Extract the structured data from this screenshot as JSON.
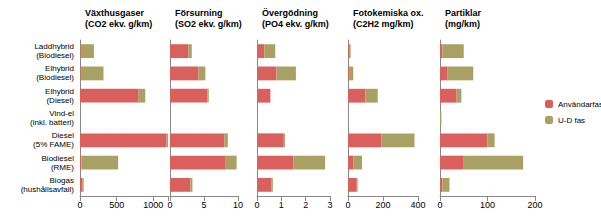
{
  "chart_data": [
    {
      "type": "bar",
      "orientation": "horizontal",
      "stacked": true,
      "title": "Växthusgaser (CO2 ekv. g/km)",
      "categories": [
        "Laddhybrid (Biodiesel)",
        "Elhybrid (Biodiesel)",
        "Elhybrid (Diesel)",
        "Vind-el (inkl. batteri)",
        "Diesel (5% FAME)",
        "Biodiesel (RME)",
        "Biogas (hushållsavfall)"
      ],
      "series": [
        {
          "name": "Användarfas",
          "color": "#d9605c",
          "values": [
            10,
            10,
            800,
            0,
            1180,
            20,
            30
          ]
        },
        {
          "name": "U-D fas",
          "color": "#a9a164",
          "values": [
            180,
            310,
            90,
            0,
            20,
            500,
            20
          ]
        }
      ],
      "xlim": [
        0,
        1200
      ],
      "xticks": [
        0,
        500,
        1000
      ]
    },
    {
      "type": "bar",
      "orientation": "horizontal",
      "stacked": true,
      "title": "Försurning (SO2 ekv. g/km)",
      "categories": [
        "Laddhybrid (Biodiesel)",
        "Elhybrid (Biodiesel)",
        "Elhybrid (Diesel)",
        "Vind-el (inkl. batteri)",
        "Diesel (5% FAME)",
        "Biodiesel (RME)",
        "Biogas (hushållsavfall)"
      ],
      "series": [
        {
          "name": "Användarfas",
          "color": "#d9605c",
          "values": [
            2.7,
            4.2,
            5.5,
            0,
            8,
            8.2,
            3
          ]
        },
        {
          "name": "U-D fas",
          "color": "#a9a164",
          "values": [
            0.5,
            1.0,
            0.2,
            0,
            0.5,
            1.6,
            0.3
          ]
        }
      ],
      "xlim": [
        0,
        10
      ],
      "xticks": [
        0,
        5,
        10
      ]
    },
    {
      "type": "bar",
      "orientation": "horizontal",
      "stacked": true,
      "title": "Övergödning (PO4 ekv. g/km)",
      "categories": [
        "Laddhybrid (Biodiesel)",
        "Elhybrid (Biodiesel)",
        "Elhybrid (Diesel)",
        "Vind-el (inkl. batteri)",
        "Diesel (5% FAME)",
        "Biodiesel (RME)",
        "Biogas (hushållsavfall)"
      ],
      "series": [
        {
          "name": "Användarfas",
          "color": "#d9605c",
          "values": [
            0.3,
            0.8,
            0.55,
            0,
            1.1,
            1.5,
            0.6
          ]
        },
        {
          "name": "U-D fas",
          "color": "#a9a164",
          "values": [
            0.45,
            0.8,
            0,
            0,
            0.05,
            1.3,
            0.05
          ]
        }
      ],
      "xlim": [
        0,
        3
      ],
      "xticks": [
        0,
        1,
        2,
        3
      ]
    },
    {
      "type": "bar",
      "orientation": "horizontal",
      "stacked": true,
      "title": "Fotokemiska ox. (C2H2 mg/km)",
      "categories": [
        "Laddhybrid (Biodiesel)",
        "Elhybrid (Biodiesel)",
        "Elhybrid (Diesel)",
        "Vind-el (inkl. batteri)",
        "Diesel (5% FAME)",
        "Biodiesel (RME)",
        "Biogas (hushållsavfall)"
      ],
      "series": [
        {
          "name": "Användarfas",
          "color": "#d9605c",
          "values": [
            5,
            10,
            100,
            0,
            190,
            30,
            50
          ]
        },
        {
          "name": "U-D fas",
          "color": "#a9a164",
          "values": [
            10,
            20,
            70,
            0,
            190,
            50,
            5
          ]
        }
      ],
      "xlim": [
        0,
        400
      ],
      "xticks": [
        0,
        200,
        400
      ]
    },
    {
      "type": "bar",
      "orientation": "horizontal",
      "stacked": true,
      "title": "Partiklar (mg/km)",
      "categories": [
        "Laddhybrid (Biodiesel)",
        "Elhybrid (Biodiesel)",
        "Elhybrid (Diesel)",
        "Vind-el (inkl. batteri)",
        "Diesel (5% FAME)",
        "Biodiesel (RME)",
        "Biogas (hushållsavfall)"
      ],
      "series": [
        {
          "name": "Användarfas",
          "color": "#d9605c",
          "values": [
            5,
            15,
            35,
            0,
            100,
            50,
            5
          ]
        },
        {
          "name": "U-D fas",
          "color": "#a9a164",
          "values": [
            45,
            55,
            10,
            3,
            15,
            125,
            15
          ]
        }
      ],
      "xlim": [
        0,
        200
      ],
      "xticks": [
        0,
        100,
        200
      ],
      "legend": "right"
    }
  ]
}
